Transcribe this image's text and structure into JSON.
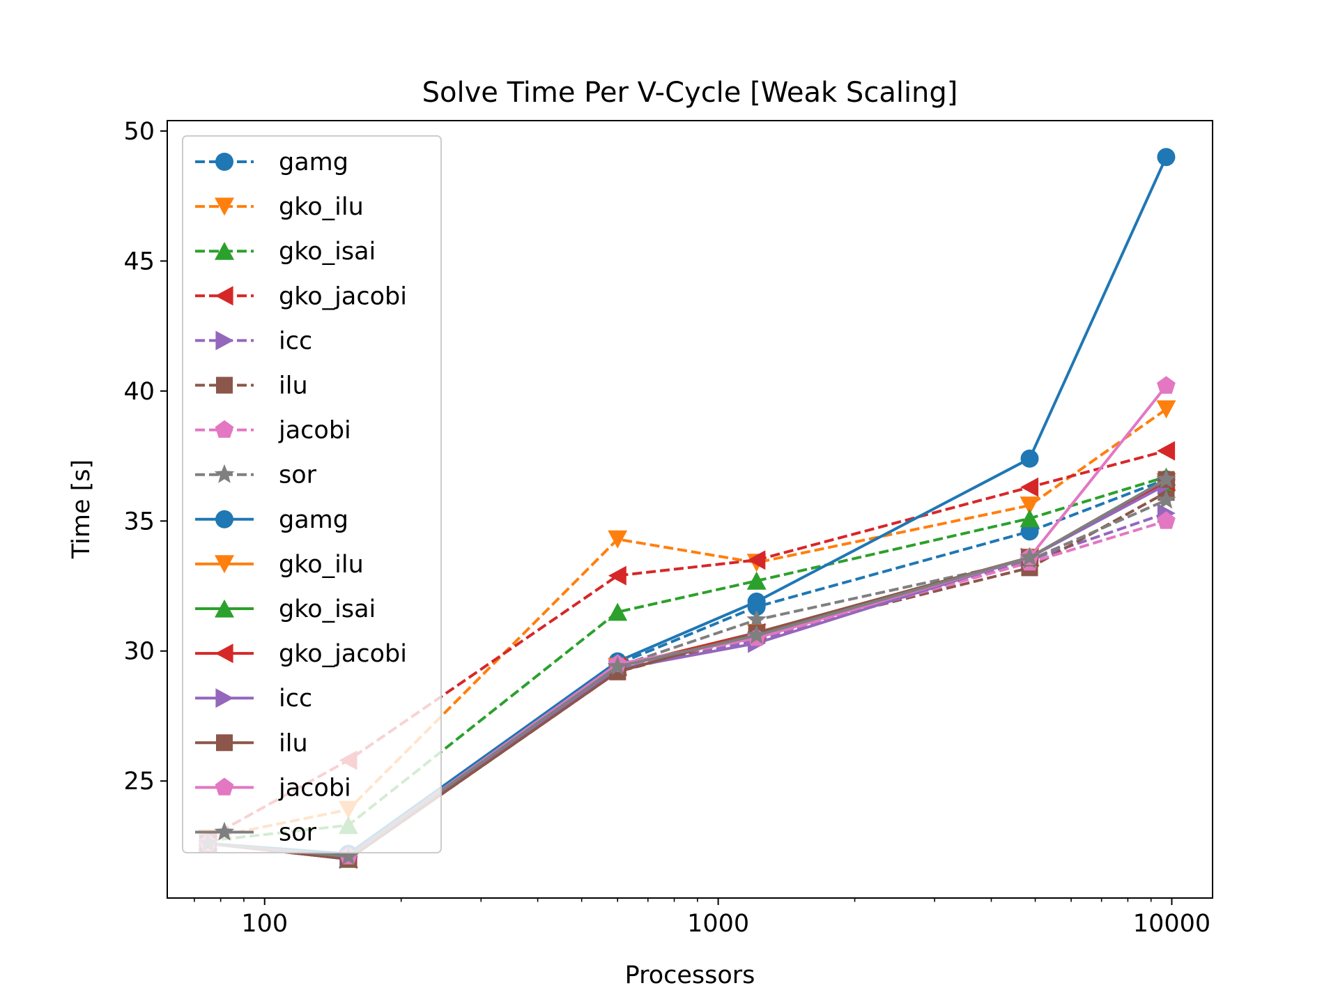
{
  "chart_data": {
    "type": "line",
    "title": "Solve Time Per V-Cycle [Weak Scaling]",
    "xlabel": "Processors",
    "ylabel": "Time [s]",
    "xscale": "log",
    "xlim": [
      61,
      12300
    ],
    "ylim": [
      20.5,
      50.4
    ],
    "xticks": [
      100,
      1000,
      10000
    ],
    "xtick_labels": [
      "100",
      "1000",
      "10000"
    ],
    "yticks": [
      25,
      30,
      35,
      40,
      45,
      50
    ],
    "ytick_labels": [
      "25",
      "30",
      "35",
      "40",
      "45",
      "50"
    ],
    "grid": false,
    "legend_position": "upper left",
    "x": [
      75,
      153,
      600,
      1215,
      4860,
      9720
    ],
    "series": [
      {
        "name": "gamg",
        "style": "dashed",
        "marker": "o",
        "color": "#1f77b4",
        "values": [
          22.6,
          22.1,
          29.5,
          31.7,
          34.6,
          36.6
        ]
      },
      {
        "name": "gko_ilu",
        "style": "dashed",
        "marker": "v",
        "color": "#ff7f0e",
        "values": [
          22.8,
          23.9,
          34.3,
          33.4,
          35.6,
          39.3
        ]
      },
      {
        "name": "gko_isai",
        "style": "dashed",
        "marker": "^",
        "color": "#2ca02c",
        "values": [
          22.7,
          23.3,
          31.5,
          32.7,
          35.1,
          36.7
        ]
      },
      {
        "name": "gko_jacobi",
        "style": "dashed",
        "marker": "<",
        "color": "#d62728",
        "values": [
          22.8,
          25.8,
          32.9,
          33.5,
          36.3,
          37.7
        ]
      },
      {
        "name": "icc",
        "style": "dashed",
        "marker": ">",
        "color": "#9467bd",
        "values": [
          22.6,
          22.0,
          29.3,
          30.4,
          33.5,
          35.3
        ]
      },
      {
        "name": "ilu",
        "style": "dashed",
        "marker": "s",
        "color": "#8c564b",
        "values": [
          22.6,
          22.0,
          29.2,
          30.6,
          33.2,
          36.1
        ]
      },
      {
        "name": "jacobi",
        "style": "dashed",
        "marker": "p",
        "color": "#e377c2",
        "values": [
          22.6,
          22.1,
          29.4,
          30.5,
          33.4,
          35.0
        ]
      },
      {
        "name": "sor",
        "style": "dashed",
        "marker": "*",
        "color": "#7f7f7f",
        "values": [
          22.6,
          22.1,
          29.4,
          31.2,
          33.5,
          35.8
        ]
      },
      {
        "name": "gamg",
        "style": "solid",
        "marker": "o",
        "color": "#1f77b4",
        "values": [
          22.6,
          22.2,
          29.6,
          31.9,
          37.4,
          49.0
        ]
      },
      {
        "name": "gko_ilu",
        "style": "solid",
        "marker": "v",
        "color": "#ff7f0e",
        "values": [
          22.6,
          22.0,
          29.4,
          30.7,
          33.6,
          36.5
        ]
      },
      {
        "name": "gko_isai",
        "style": "solid",
        "marker": "^",
        "color": "#2ca02c",
        "values": [
          22.6,
          22.0,
          29.4,
          30.7,
          33.6,
          36.5
        ]
      },
      {
        "name": "gko_jacobi",
        "style": "solid",
        "marker": "<",
        "color": "#d62728",
        "values": [
          22.6,
          22.0,
          29.4,
          30.7,
          33.6,
          36.5
        ]
      },
      {
        "name": "icc",
        "style": "solid",
        "marker": ">",
        "color": "#9467bd",
        "values": [
          22.6,
          22.0,
          29.3,
          30.3,
          33.6,
          36.4
        ]
      },
      {
        "name": "ilu",
        "style": "solid",
        "marker": "s",
        "color": "#8c564b",
        "values": [
          22.6,
          22.0,
          29.2,
          30.7,
          33.6,
          36.6
        ]
      },
      {
        "name": "jacobi",
        "style": "solid",
        "marker": "p",
        "color": "#e377c2",
        "values": [
          22.6,
          22.1,
          29.5,
          30.5,
          33.6,
          40.2
        ]
      },
      {
        "name": "sor",
        "style": "solid",
        "marker": "*",
        "color": "#7f7f7f",
        "values": [
          22.6,
          22.1,
          29.4,
          30.6,
          33.6,
          36.6
        ]
      }
    ]
  }
}
